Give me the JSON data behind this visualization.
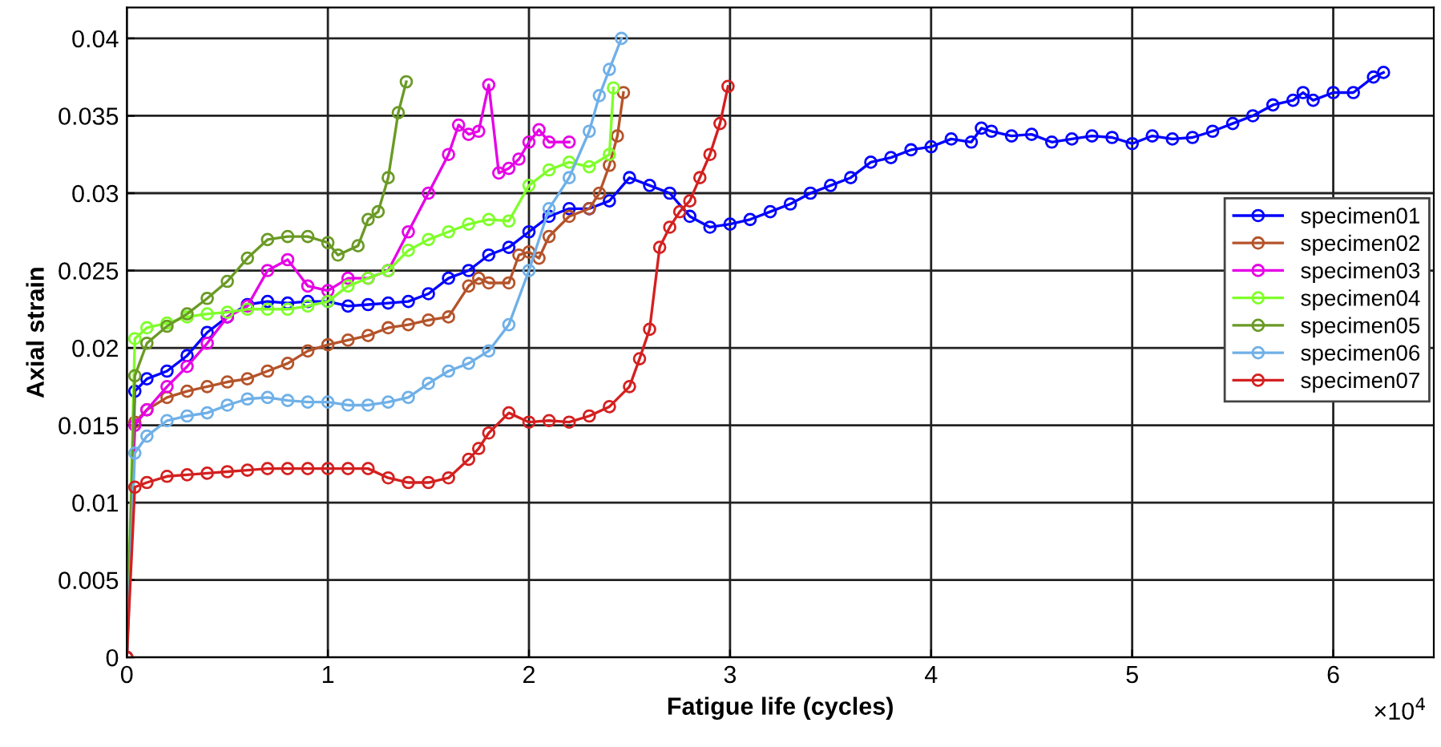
{
  "chart_data": {
    "type": "line",
    "xlabel": "Fatigue life (cycles)",
    "ylabel": "Axial strain",
    "xlim": [
      0,
      6.5
    ],
    "ylim": [
      0,
      0.042
    ],
    "xticks": [
      0,
      1,
      2,
      3,
      4,
      5,
      6
    ],
    "yticks": [
      0,
      0.005,
      0.01,
      0.015,
      0.02,
      0.025,
      0.03,
      0.035,
      0.04
    ],
    "annotations": [
      "×10$^{4}$"
    ],
    "grid": true,
    "legend": "right",
    "marker": "circle",
    "line_style": "solid",
    "series": [
      {
        "name": "specimen01",
        "color": "#0000ff",
        "x": [
          0,
          0.04,
          0.1,
          0.2,
          0.3,
          0.4,
          0.5,
          0.6,
          0.7,
          0.8,
          0.9,
          1.0,
          1.1,
          1.2,
          1.3,
          1.4,
          1.5,
          1.6,
          1.7,
          1.8,
          1.9,
          2.0,
          2.1,
          2.2,
          2.3,
          2.4,
          2.5,
          2.6,
          2.7,
          2.8,
          2.9,
          3.0,
          3.1,
          3.2,
          3.3,
          3.4,
          3.5,
          3.6,
          3.7,
          3.8,
          3.9,
          4.0,
          4.1,
          4.2,
          4.25,
          4.3,
          4.4,
          4.5,
          4.6,
          4.7,
          4.8,
          4.9,
          5.0,
          5.1,
          5.2,
          5.3,
          5.4,
          5.5,
          5.6,
          5.7,
          5.8,
          5.85,
          5.9,
          6.0,
          6.1,
          6.2,
          6.25
        ],
        "values": [
          0,
          0.0172,
          0.018,
          0.0185,
          0.0195,
          0.021,
          0.022,
          0.0228,
          0.023,
          0.0229,
          0.023,
          0.023,
          0.0227,
          0.0228,
          0.0229,
          0.023,
          0.0235,
          0.0245,
          0.025,
          0.026,
          0.0265,
          0.0275,
          0.0285,
          0.029,
          0.029,
          0.0295,
          0.031,
          0.0305,
          0.03,
          0.0285,
          0.0278,
          0.028,
          0.0283,
          0.0288,
          0.0293,
          0.03,
          0.0305,
          0.031,
          0.032,
          0.0323,
          0.0328,
          0.033,
          0.0335,
          0.0333,
          0.0342,
          0.034,
          0.0337,
          0.0338,
          0.0333,
          0.0335,
          0.0337,
          0.0336,
          0.0332,
          0.0337,
          0.0335,
          0.0336,
          0.034,
          0.0345,
          0.035,
          0.0357,
          0.036,
          0.0365,
          0.036,
          0.0365,
          0.0365,
          0.0375,
          0.0378
        ]
      },
      {
        "name": "specimen02",
        "color": "#b5532a",
        "x": [
          0,
          0.04,
          0.1,
          0.2,
          0.3,
          0.4,
          0.5,
          0.6,
          0.7,
          0.8,
          0.9,
          1.0,
          1.1,
          1.2,
          1.3,
          1.4,
          1.5,
          1.6,
          1.7,
          1.75,
          1.8,
          1.9,
          1.95,
          2.0,
          2.05,
          2.1,
          2.2,
          2.3,
          2.35,
          2.4,
          2.44,
          2.47
        ],
        "values": [
          0,
          0.0152,
          0.016,
          0.0168,
          0.0172,
          0.0175,
          0.0178,
          0.018,
          0.0185,
          0.019,
          0.0198,
          0.0202,
          0.0205,
          0.0208,
          0.0213,
          0.0215,
          0.0218,
          0.022,
          0.024,
          0.0245,
          0.0242,
          0.0242,
          0.026,
          0.0262,
          0.0258,
          0.0272,
          0.0285,
          0.029,
          0.03,
          0.0318,
          0.0337,
          0.0365
        ]
      },
      {
        "name": "specimen03",
        "color": "#e600e6",
        "x": [
          0,
          0.04,
          0.1,
          0.2,
          0.3,
          0.4,
          0.5,
          0.6,
          0.7,
          0.8,
          0.9,
          1.0,
          1.1,
          1.2,
          1.3,
          1.4,
          1.5,
          1.6,
          1.65,
          1.7,
          1.75,
          1.8,
          1.85,
          1.9,
          1.95,
          2.0,
          2.05,
          2.1,
          2.2
        ],
        "values": [
          0,
          0.015,
          0.016,
          0.0175,
          0.0188,
          0.0203,
          0.022,
          0.0227,
          0.025,
          0.0257,
          0.024,
          0.0237,
          0.0245,
          0.0245,
          0.025,
          0.0275,
          0.03,
          0.0325,
          0.0344,
          0.0338,
          0.034,
          0.037,
          0.0313,
          0.0316,
          0.0322,
          0.0333,
          0.0341,
          0.0333,
          0.0333
        ]
      },
      {
        "name": "specimen04",
        "color": "#7fff2a",
        "x": [
          0,
          0.04,
          0.1,
          0.2,
          0.3,
          0.4,
          0.5,
          0.6,
          0.7,
          0.8,
          0.9,
          1.0,
          1.1,
          1.2,
          1.3,
          1.4,
          1.5,
          1.6,
          1.7,
          1.8,
          1.9,
          2.0,
          2.1,
          2.2,
          2.3,
          2.4,
          2.42
        ],
        "values": [
          0,
          0.0206,
          0.0213,
          0.0216,
          0.022,
          0.0222,
          0.0223,
          0.0225,
          0.0225,
          0.0225,
          0.0227,
          0.023,
          0.024,
          0.0245,
          0.025,
          0.0263,
          0.027,
          0.0275,
          0.028,
          0.0283,
          0.0282,
          0.0305,
          0.0315,
          0.032,
          0.0317,
          0.0325,
          0.0368
        ]
      },
      {
        "name": "specimen05",
        "color": "#6a9a25",
        "x": [
          0,
          0.04,
          0.1,
          0.2,
          0.3,
          0.4,
          0.5,
          0.6,
          0.7,
          0.8,
          0.9,
          1.0,
          1.05,
          1.15,
          1.2,
          1.25,
          1.3,
          1.35,
          1.39
        ],
        "values": [
          0,
          0.0182,
          0.0203,
          0.0214,
          0.0222,
          0.0232,
          0.0243,
          0.0258,
          0.027,
          0.0272,
          0.0272,
          0.0268,
          0.026,
          0.0266,
          0.0283,
          0.0288,
          0.031,
          0.0352,
          0.0372
        ]
      },
      {
        "name": "specimen06",
        "color": "#6fb0e8",
        "x": [
          0,
          0.04,
          0.1,
          0.2,
          0.3,
          0.4,
          0.5,
          0.6,
          0.7,
          0.8,
          0.9,
          1.0,
          1.1,
          1.2,
          1.3,
          1.4,
          1.5,
          1.6,
          1.7,
          1.8,
          1.9,
          2.0,
          2.1,
          2.2,
          2.3,
          2.35,
          2.4,
          2.46
        ],
        "values": [
          0,
          0.0132,
          0.0143,
          0.0153,
          0.0156,
          0.0158,
          0.0163,
          0.0167,
          0.0168,
          0.0166,
          0.0165,
          0.0165,
          0.0163,
          0.0163,
          0.0165,
          0.0168,
          0.0177,
          0.0185,
          0.019,
          0.0198,
          0.0215,
          0.025,
          0.029,
          0.031,
          0.034,
          0.0363,
          0.038,
          0.04
        ]
      },
      {
        "name": "specimen07",
        "color": "#d42020",
        "x": [
          0,
          0.04,
          0.1,
          0.2,
          0.3,
          0.4,
          0.5,
          0.6,
          0.7,
          0.8,
          0.9,
          1.0,
          1.1,
          1.2,
          1.3,
          1.4,
          1.5,
          1.6,
          1.7,
          1.75,
          1.8,
          1.9,
          2.0,
          2.1,
          2.2,
          2.3,
          2.4,
          2.5,
          2.55,
          2.6,
          2.65,
          2.7,
          2.75,
          2.8,
          2.85,
          2.9,
          2.95,
          2.99
        ],
        "values": [
          0,
          0.011,
          0.0113,
          0.0117,
          0.0118,
          0.0119,
          0.012,
          0.0121,
          0.0122,
          0.0122,
          0.0122,
          0.0122,
          0.0122,
          0.0122,
          0.0116,
          0.0113,
          0.0113,
          0.0116,
          0.0128,
          0.0135,
          0.0145,
          0.0158,
          0.0152,
          0.0153,
          0.0152,
          0.0156,
          0.0162,
          0.0175,
          0.0193,
          0.0212,
          0.0265,
          0.0278,
          0.0288,
          0.0295,
          0.031,
          0.0325,
          0.0345,
          0.0369
        ]
      }
    ]
  }
}
